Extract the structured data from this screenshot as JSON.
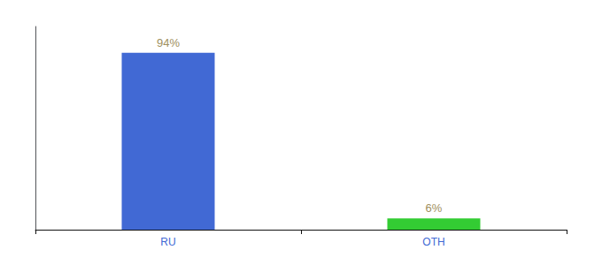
{
  "chart_data": {
    "type": "bar",
    "categories": [
      "RU",
      "OTH"
    ],
    "values": [
      94,
      6
    ],
    "value_labels": [
      "94%",
      "6%"
    ],
    "colors": [
      "#4169d4",
      "#33cc33"
    ],
    "data_labels": true,
    "ylim": [
      0,
      108
    ],
    "tick_labels": "x",
    "grid": false
  }
}
